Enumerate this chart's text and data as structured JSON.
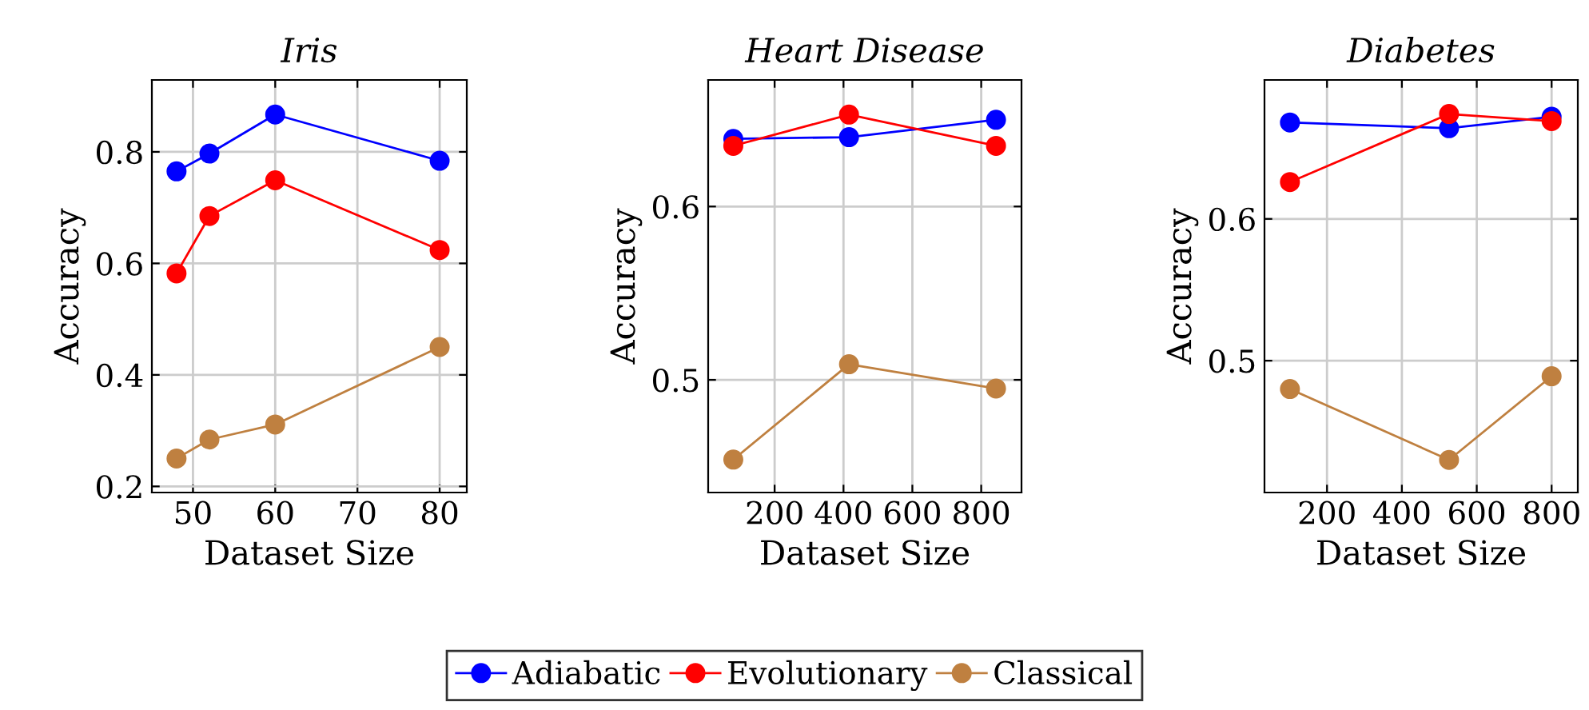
{
  "chart_data": [
    {
      "type": "line",
      "title": "Iris",
      "xlabel": "Dataset Size",
      "ylabel": "Accuracy",
      "x": [
        48,
        52,
        60,
        80
      ],
      "xlim": [
        45,
        83.3
      ],
      "xticks": [
        50,
        60,
        70,
        80
      ],
      "ylim": [
        0.189,
        0.929
      ],
      "yticks": [
        0.2,
        0.4,
        0.6,
        0.8
      ],
      "grid": true,
      "marker": "circle",
      "line_style": "solid",
      "legend": "bottom",
      "series": [
        {
          "name": "Adiabatic",
          "color": "#0000ff",
          "values": [
            0.765,
            0.797,
            0.867,
            0.784
          ]
        },
        {
          "name": "Evolutionary",
          "color": "#ff0000",
          "values": [
            0.582,
            0.685,
            0.749,
            0.624
          ]
        },
        {
          "name": "Classical",
          "color": "#bf8040",
          "values": [
            0.25,
            0.284,
            0.311,
            0.45
          ]
        }
      ]
    },
    {
      "type": "line",
      "title": "Heart Disease",
      "xlabel": "Dataset Size",
      "ylabel": "Accuracy",
      "x": [
        80,
        416,
        843
      ],
      "xlim": [
        7,
        917
      ],
      "xticks": [
        200,
        400,
        600,
        800
      ],
      "ylim": [
        0.435,
        0.673
      ],
      "yticks": [
        0.5,
        0.6
      ],
      "grid": true,
      "marker": "circle",
      "line_style": "solid",
      "series": [
        {
          "color": "#0000ff",
          "values": [
            0.639,
            0.64,
            0.65
          ]
        },
        {
          "color": "#ff0000",
          "values": [
            0.635,
            0.653,
            0.635
          ]
        },
        {
          "color": "#bf8040",
          "values": [
            0.454,
            0.509,
            0.495
          ]
        }
      ]
    },
    {
      "type": "line",
      "title": "Diabetes",
      "xlabel": "Dataset Size",
      "ylabel": "Accuracy",
      "x": [
        101,
        526,
        800
      ],
      "xlim": [
        33,
        870
      ],
      "xticks": [
        200,
        400,
        600,
        800
      ],
      "ylim": [
        0.407,
        0.698
      ],
      "yticks": [
        0.5,
        0.6
      ],
      "grid": true,
      "marker": "circle",
      "line_style": "solid",
      "series": [
        {
          "color": "#0000ff",
          "values": [
            0.668,
            0.664,
            0.672
          ]
        },
        {
          "color": "#ff0000",
          "values": [
            0.626,
            0.674,
            0.669
          ]
        },
        {
          "color": "#bf8040",
          "values": [
            0.48,
            0.43,
            0.489
          ]
        }
      ]
    }
  ]
}
